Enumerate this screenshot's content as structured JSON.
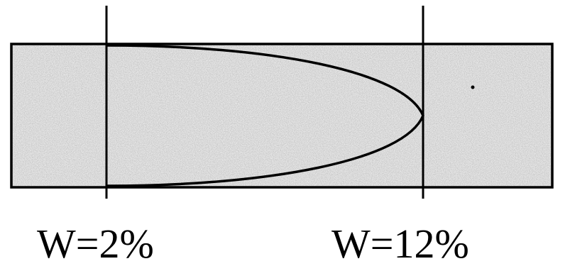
{
  "labels": {
    "left": "W=2%",
    "right": "W=12%"
  },
  "colors": {
    "stroke": "#000000",
    "fill": "#e3e3e3",
    "speckle": "#9a9a9a",
    "background": "#ffffff"
  }
}
